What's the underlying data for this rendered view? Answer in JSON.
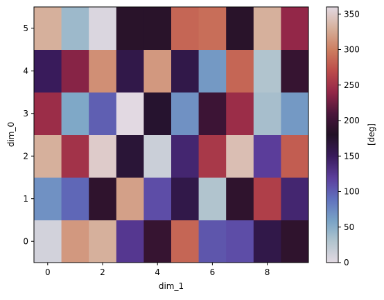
{
  "chart_data": {
    "type": "heatmap",
    "x_label": "dim_1",
    "y_label": "dim_0",
    "x_range": [
      -0.5,
      9.5
    ],
    "y_range": [
      -0.5,
      5.5
    ],
    "x_ticks": [
      0,
      2,
      4,
      6,
      8
    ],
    "y_ticks": [
      0,
      1,
      2,
      3,
      4,
      5
    ],
    "colormap": "twilight",
    "colorbar": {
      "label": "[deg]",
      "range": [
        0,
        360
      ],
      "ticks": [
        0,
        50,
        100,
        150,
        200,
        250,
        300,
        350
      ]
    },
    "rows": [
      {
        "dim_0": 0,
        "values": [
          10,
          315,
          330,
          125,
          195,
          285,
          105,
          110,
          160,
          190
        ]
      },
      {
        "dim_0": 1,
        "values": [
          70,
          95,
          190,
          320,
          110,
          160,
          30,
          190,
          260,
          140
        ]
      },
      {
        "dim_0": 2,
        "values": [
          330,
          250,
          350,
          170,
          15,
          140,
          255,
          340,
          120,
          280
        ]
      },
      {
        "dim_0": 3,
        "values": [
          245,
          55,
          100,
          0,
          175,
          70,
          200,
          245,
          35,
          65
        ]
      },
      {
        "dim_0": 4,
        "values": [
          150,
          235,
          310,
          160,
          315,
          160,
          65,
          285,
          30,
          195
        ]
      },
      {
        "dim_0": 5,
        "values": [
          330,
          40,
          5,
          185,
          185,
          285,
          290,
          185,
          330,
          240
        ]
      }
    ]
  }
}
